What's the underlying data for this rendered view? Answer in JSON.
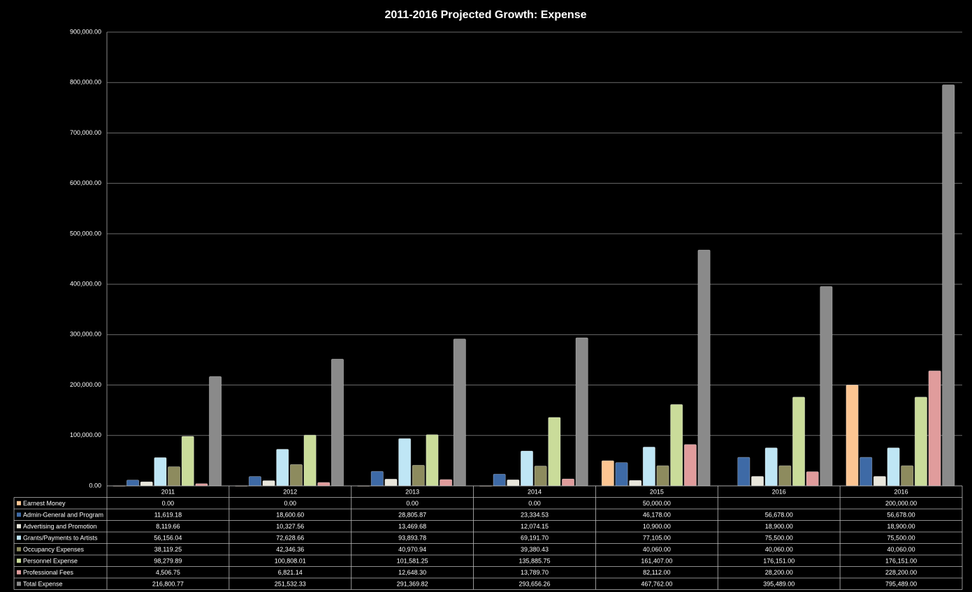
{
  "chart_data": {
    "type": "bar",
    "title": "2011-2016 Projected Growth: Expense",
    "categories": [
      "2011",
      "2012",
      "2013",
      "2014",
      "2015",
      "2016",
      "2016"
    ],
    "ylim": [
      0,
      900000
    ],
    "yticks": [
      {
        "value": 0,
        "label": "0.00"
      },
      {
        "value": 100000,
        "label": "100,000.00"
      },
      {
        "value": 200000,
        "label": "200,000.00"
      },
      {
        "value": 300000,
        "label": "300,000.00"
      },
      {
        "value": 400000,
        "label": "400,000.00"
      },
      {
        "value": 500000,
        "label": "500,000.00"
      },
      {
        "value": 600000,
        "label": "600,000.00"
      },
      {
        "value": 700000,
        "label": "700,000.00"
      },
      {
        "value": 800000,
        "label": "800,000.00"
      },
      {
        "value": 900000,
        "label": "900,000.00"
      }
    ],
    "grid": true,
    "series": [
      {
        "name": "Earnest Money",
        "color": "#fcc592",
        "values": [
          0,
          0,
          0,
          0,
          50000,
          null,
          200000
        ],
        "value_labels": [
          "0.00",
          "0.00",
          "0.00",
          "0.00",
          "50,000.00",
          null,
          "200,000.00"
        ]
      },
      {
        "name": "Admin-General and Program",
        "color": "#3e6aa6",
        "values": [
          11619.18,
          18600.6,
          28805.87,
          23334.53,
          46178,
          56678,
          56678
        ],
        "value_labels": [
          "11,619.18",
          "18,600.60",
          "28,805.87",
          "23,334.53",
          "46,178.00",
          "56,678.00",
          "56,678.00"
        ]
      },
      {
        "name": "Advertising and Promotion",
        "color": "#e9e7dc",
        "values": [
          8119.66,
          10327.56,
          13469.68,
          12074.15,
          10900,
          18900,
          18900
        ],
        "value_labels": [
          "8,119.66",
          "10,327.56",
          "13,469.68",
          "12,074.15",
          "10,900.00",
          "18,900.00",
          "18,900.00"
        ]
      },
      {
        "name": "Grants/Payments to Artists",
        "color": "#bfe6f5",
        "values": [
          56156.04,
          72628.66,
          93893.78,
          69191.7,
          77105,
          75500,
          75500
        ],
        "value_labels": [
          "56,156.04",
          "72,628.66",
          "93,893.78",
          "69,191.70",
          "77,105.00",
          "75,500.00",
          "75,500.00"
        ]
      },
      {
        "name": "Occupancy Expenses",
        "color": "#8d8b5e",
        "values": [
          38119.25,
          42346.36,
          40970.94,
          39380.43,
          40060,
          40060,
          40060
        ],
        "value_labels": [
          "38,119.25",
          "42,346.36",
          "40,970.94",
          "39,380.43",
          "40,060.00",
          "40,060.00",
          "40,060.00"
        ]
      },
      {
        "name": "Personnel Expense",
        "color": "#cadc9a",
        "values": [
          98279.89,
          100808.01,
          101581.25,
          135885.75,
          161407,
          176151,
          176151
        ],
        "value_labels": [
          "98,279.89",
          "100,808.01",
          "101,581.25",
          "135,885.75",
          "161,407.00",
          "176,151.00",
          "176,151.00"
        ]
      },
      {
        "name": "Professional Fees",
        "color": "#e09c9c",
        "values": [
          4506.75,
          6821.14,
          12648.3,
          13789.7,
          82112,
          28200,
          228200
        ],
        "value_labels": [
          "4,506.75",
          "6,821.14",
          "12,648.30",
          "13,789.70",
          "82,112.00",
          "28,200.00",
          "228,200.00"
        ]
      },
      {
        "name": "Total Expense",
        "color": "#8a8a8a",
        "values": [
          216800.77,
          251532.33,
          291369.82,
          293656.26,
          467762,
          395489,
          795489
        ],
        "value_labels": [
          "216,800.77",
          "251,532.33",
          "291,369.82",
          "293,656.26",
          "467,762.00",
          "395,489.00",
          "795,489.00"
        ]
      }
    ]
  }
}
